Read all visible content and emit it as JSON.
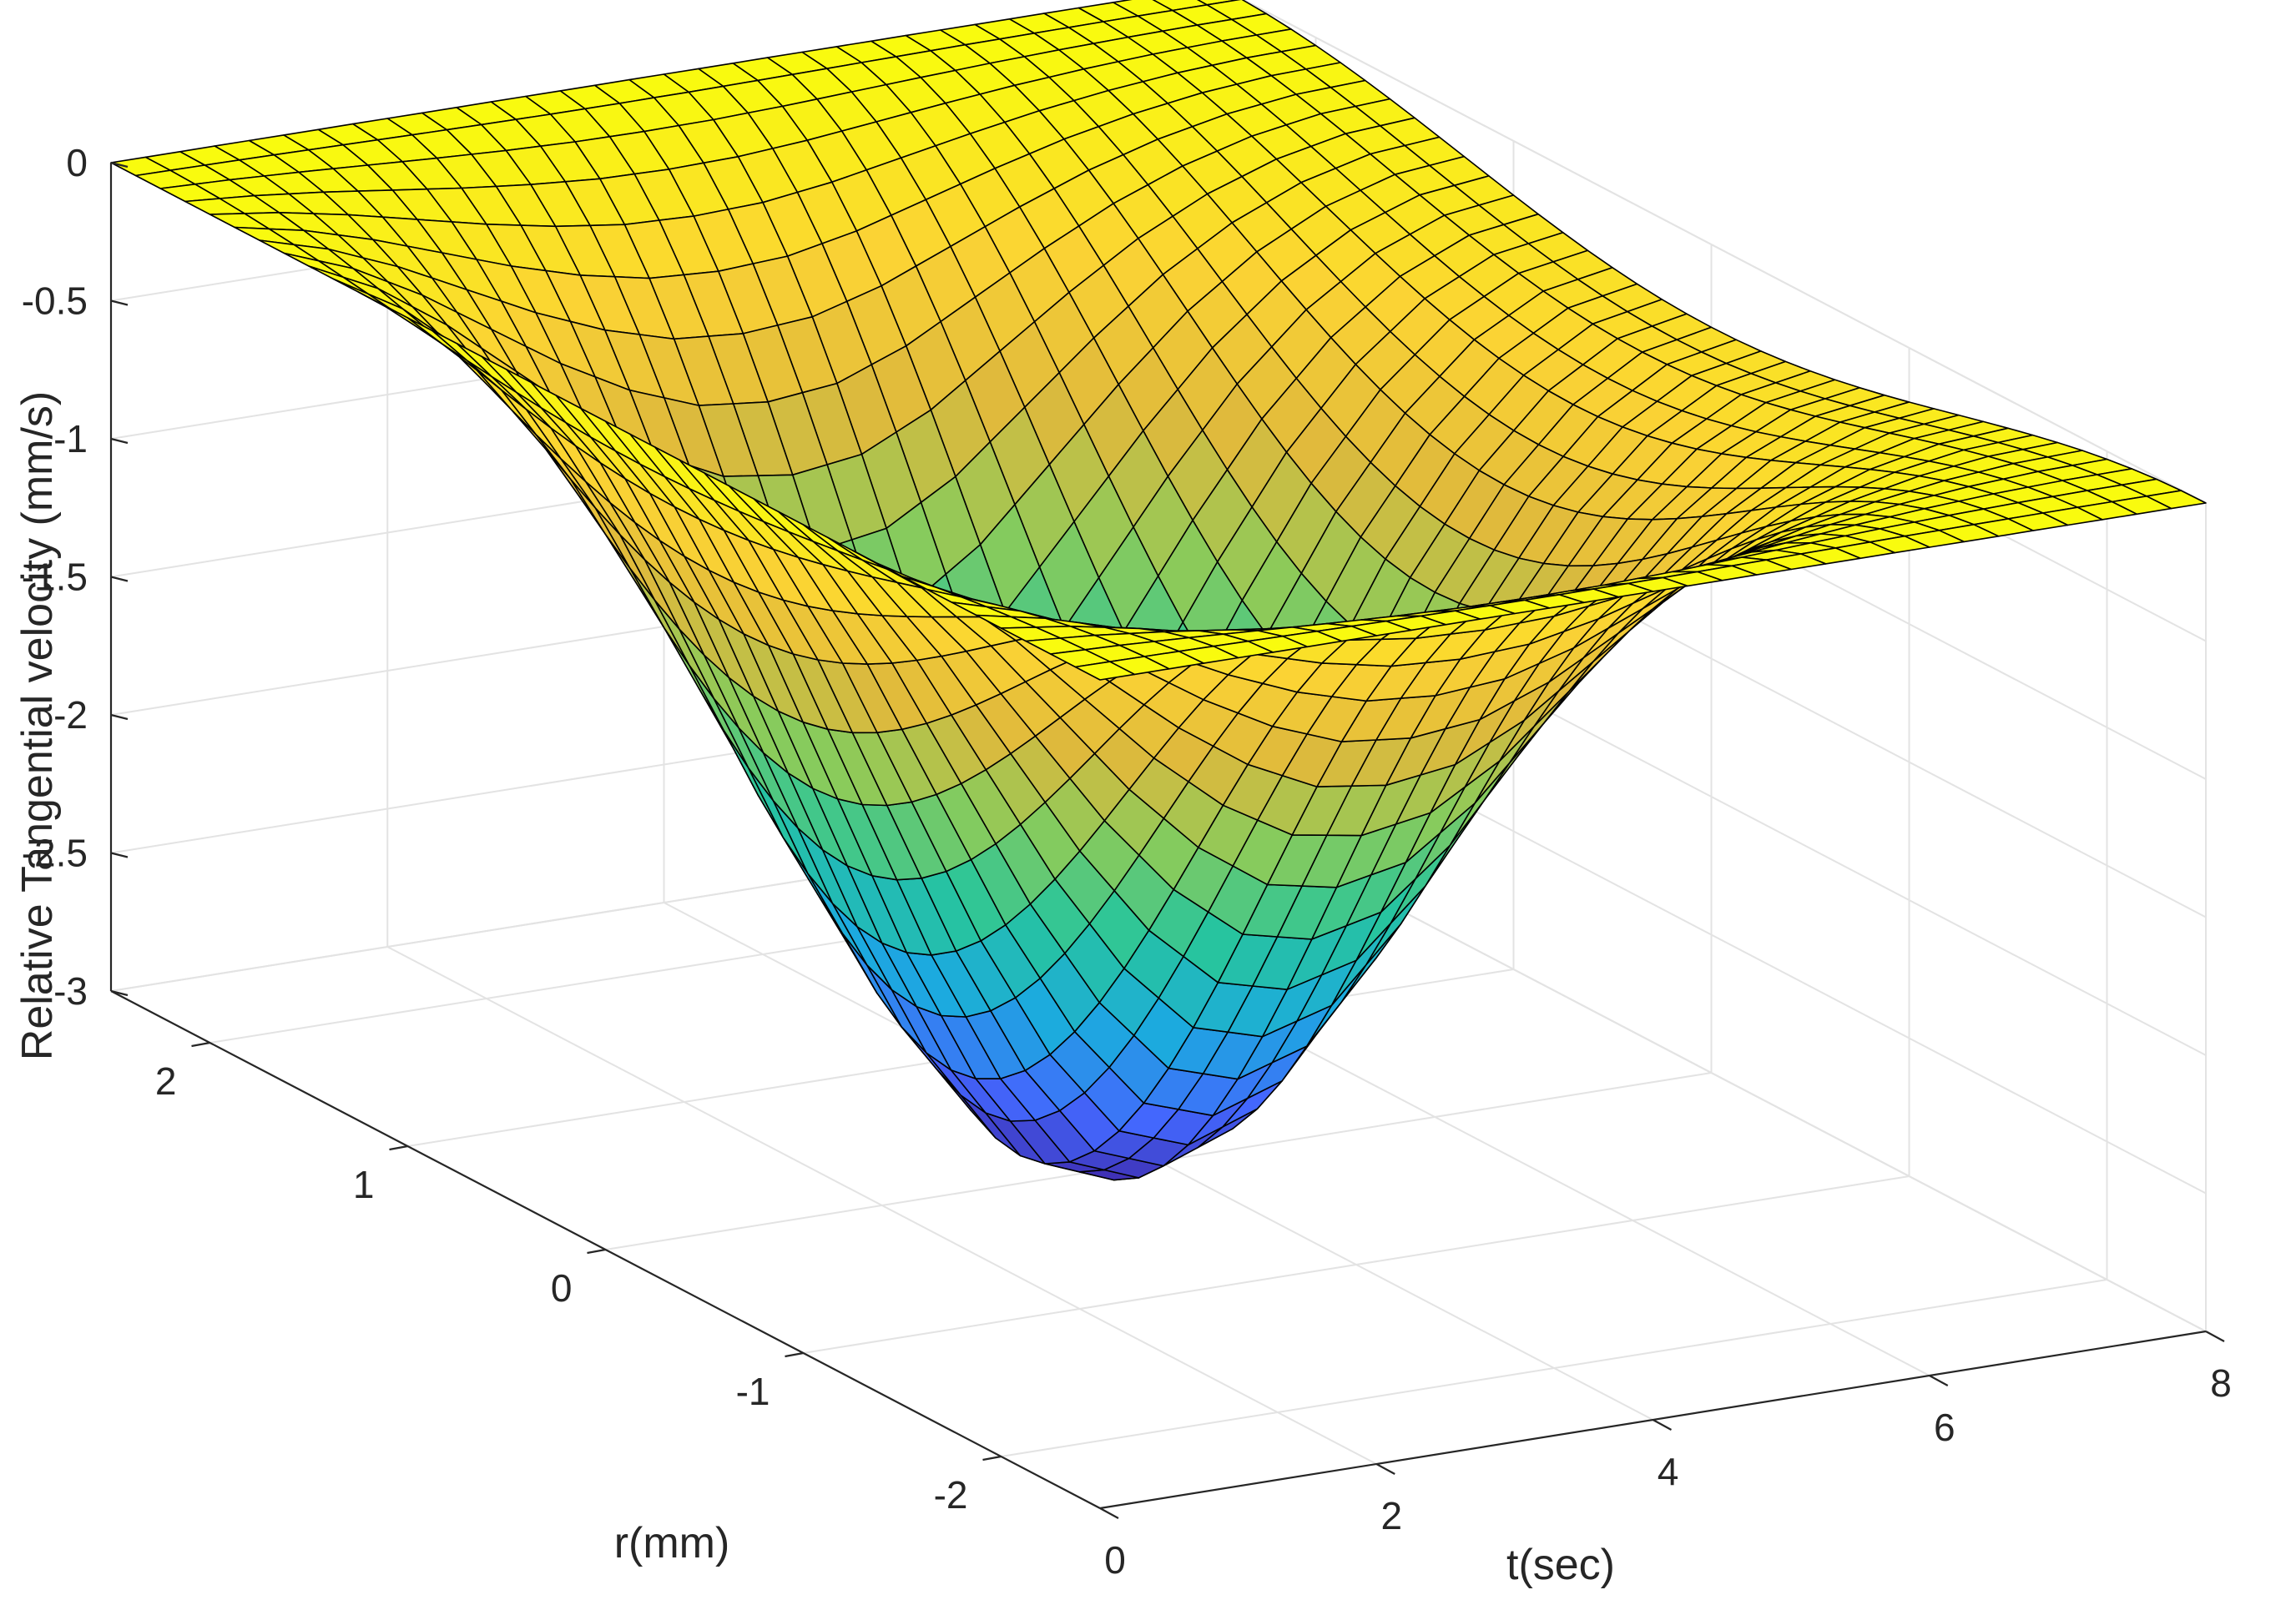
{
  "chart_data": {
    "type": "surface",
    "title": "",
    "xlabel": "t(sec)",
    "ylabel": "r(mm)",
    "zlabel": "Relative Tangential velocity (mm/s)",
    "xlim": [
      0,
      8
    ],
    "ylim": [
      -2.5,
      2.5
    ],
    "zlim": [
      -3,
      0
    ],
    "xticks": [
      0,
      2,
      4,
      6,
      8
    ],
    "yticks": [
      -2,
      -1,
      0,
      1,
      2
    ],
    "zticks": [
      -3,
      -2.5,
      -2,
      -1.5,
      -1,
      -0.5,
      0
    ],
    "xtick_labels": [
      "0",
      "2",
      "4",
      "6",
      "8"
    ],
    "ytick_labels": [
      "-2",
      "-1",
      "0",
      "1",
      "2"
    ],
    "ztick_labels": [
      "-3",
      "-2.5",
      "-2",
      "-1.5",
      "-1",
      "-0.5",
      "0"
    ],
    "grid": true,
    "colormap": "parula",
    "colormap_stops": [
      "#3e26a8",
      "#4367fd",
      "#1caadf",
      "#27c59c",
      "#89cb5b",
      "#dfb93c",
      "#fbd334",
      "#f9fb0e"
    ],
    "edge_color": "#000000",
    "surface_description": "Velocity is 0 at r = ±2.5 mm and reaches its minimum at r = 0; the depth of the trough grows from 0 at t = 0 to about -3 at t ≈ 3.5 s and decays back toward -0.3 by t = 8 s.",
    "peak_min": {
      "t": 3.5,
      "r": 0,
      "value": -3.0
    },
    "t_samples": [
      0,
      0.5,
      1,
      1.5,
      2,
      2.5,
      3,
      3.5,
      4,
      4.5,
      5,
      5.5,
      6,
      6.5,
      7,
      7.5,
      8
    ],
    "min_velocity_by_t": [
      0,
      -0.35,
      -0.85,
      -1.45,
      -2.05,
      -2.55,
      -2.9,
      -3.0,
      -2.9,
      -2.55,
      -2.05,
      -1.55,
      -1.1,
      -0.75,
      -0.5,
      -0.35,
      -0.3
    ]
  }
}
